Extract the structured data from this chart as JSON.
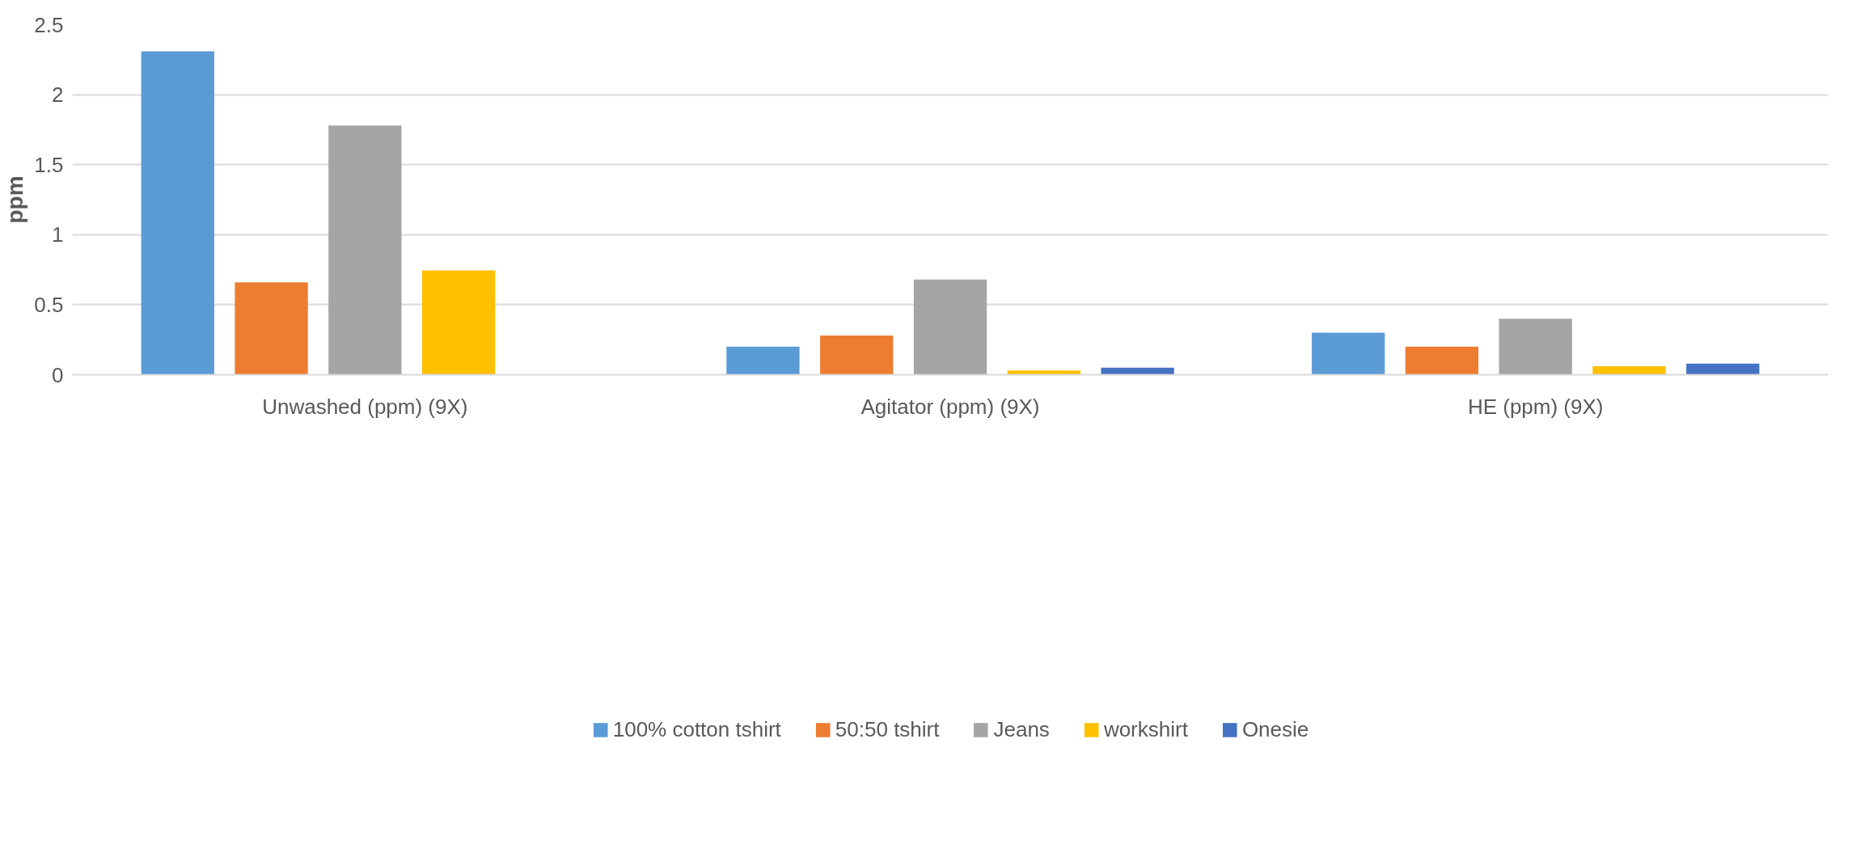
{
  "chart_data": {
    "type": "bar",
    "ylabel": "ppm",
    "categories": [
      "Unwashed (ppm) (9X)",
      "Agitator (ppm) (9X)",
      "HE (ppm) (9X)"
    ],
    "series": [
      {
        "name": "100% cotton tshirt",
        "color": "#5b9bd5",
        "values": [
          2.31,
          0.2,
          0.3
        ]
      },
      {
        "name": "50:50 tshirt",
        "color": "#ed7d31",
        "values": [
          0.66,
          0.28,
          0.2
        ]
      },
      {
        "name": "Jeans",
        "color": "#a5a5a5",
        "values": [
          1.78,
          0.68,
          0.4
        ]
      },
      {
        "name": "workshirt",
        "color": "#ffc000",
        "values": [
          0.745,
          0.03,
          0.06
        ]
      },
      {
        "name": "Onesie",
        "color": "#4472c4",
        "values": [
          0,
          0.05,
          0.08
        ]
      }
    ],
    "ylim": [
      0,
      2.5
    ],
    "yticks": [
      0,
      0.5,
      1,
      1.5,
      2,
      2.5
    ],
    "grid": "y",
    "legend": "bottom"
  }
}
